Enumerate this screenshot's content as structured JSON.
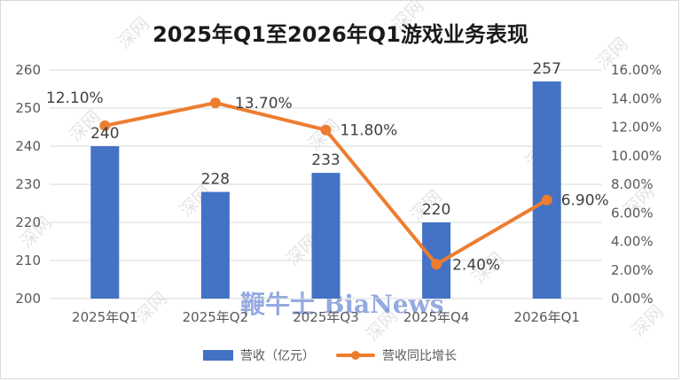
{
  "chart_data": {
    "type": "bar",
    "title": "2025年Q1至2026年Q1游戏业务表现",
    "categories": [
      "2025年Q1",
      "2025年Q2",
      "2025年Q3",
      "2025年Q4",
      "2026年Q1"
    ],
    "series": [
      {
        "name": "营收（亿元）",
        "type": "bar",
        "axis": "left",
        "color": "#4472c4",
        "values": [
          240,
          228,
          233,
          220,
          257
        ],
        "labels": [
          "240",
          "228",
          "233",
          "220",
          "257"
        ]
      },
      {
        "name": "营收同比增长",
        "type": "line",
        "axis": "right",
        "color": "#ed7d31",
        "values": [
          12.1,
          13.7,
          11.8,
          2.4,
          6.9
        ],
        "labels": [
          "12.10%",
          "13.70%",
          "11.80%",
          "2.40%",
          "6.90%"
        ]
      }
    ],
    "left_axis": {
      "ylim": [
        200,
        260
      ],
      "ticks": [
        "200",
        "210",
        "220",
        "230",
        "240",
        "250",
        "260"
      ]
    },
    "right_axis": {
      "ylim": [
        0,
        16
      ],
      "ticks": [
        "0.00%",
        "2.00%",
        "4.00%",
        "6.00%",
        "8.00%",
        "10.00%",
        "12.00%",
        "14.00%",
        "16.00%"
      ]
    },
    "grid": true,
    "legend_position": "bottom"
  },
  "watermark": {
    "text": "深网",
    "logo": "鞭牛士 BiaNews"
  }
}
